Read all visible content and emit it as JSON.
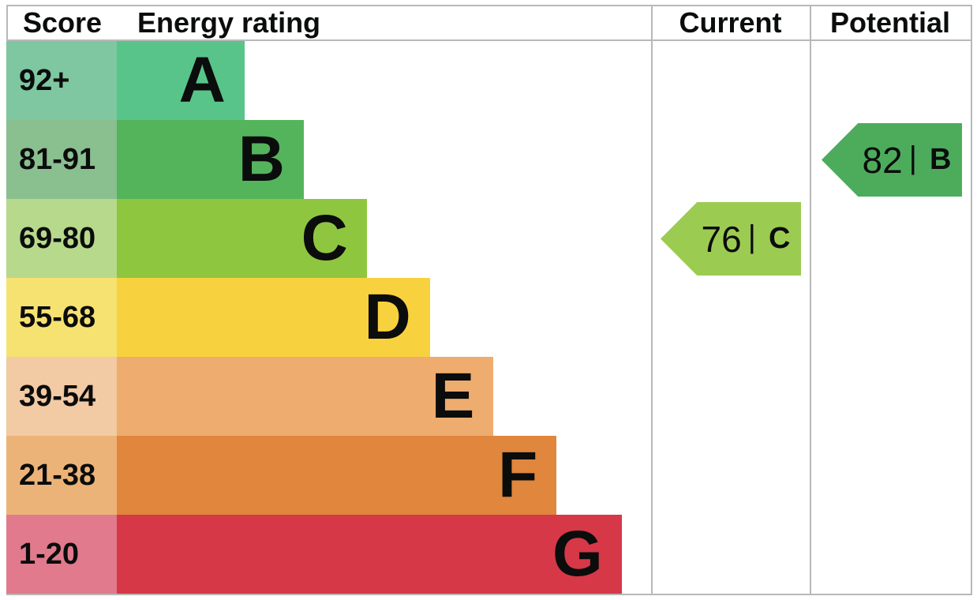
{
  "header": {
    "score": "Score",
    "energy_rating": "Energy rating",
    "current": "Current",
    "potential": "Potential"
  },
  "chart_data": {
    "type": "bar",
    "title": "EPC energy efficiency rating chart",
    "categories": [
      "A",
      "B",
      "C",
      "D",
      "E",
      "F",
      "G"
    ],
    "bands": [
      {
        "letter": "A",
        "score": "92+",
        "color": "#59c489",
        "score_bg": "#7ec7a1",
        "width_pct": 23.9
      },
      {
        "letter": "B",
        "score": "81-91",
        "color": "#54b45c",
        "score_bg": "#8abf90",
        "width_pct": 35.0
      },
      {
        "letter": "C",
        "score": "69-80",
        "color": "#8fc640",
        "score_bg": "#b7d98c",
        "width_pct": 46.8
      },
      {
        "letter": "D",
        "score": "55-68",
        "color": "#f8d23e",
        "score_bg": "#f6e271",
        "width_pct": 58.6
      },
      {
        "letter": "E",
        "score": "39-54",
        "color": "#eeac6f",
        "score_bg": "#f2caa3",
        "width_pct": 70.5
      },
      {
        "letter": "F",
        "score": "21-38",
        "color": "#e0863d",
        "score_bg": "#ecb378",
        "width_pct": 82.3
      },
      {
        "letter": "G",
        "score": "1-20",
        "color": "#d63848",
        "score_bg": "#e07a8c",
        "width_pct": 94.5
      }
    ],
    "current": {
      "label": "Current",
      "value": "76",
      "separator": "|",
      "letter": "C",
      "color": "#9ccb52"
    },
    "potential": {
      "label": "Potential",
      "value": "82",
      "separator": "|",
      "letter": "B",
      "color": "#4dac5c"
    },
    "layout": {
      "grid_line_color": "#b8b8b8",
      "text_color": "#0b0c0c",
      "background": "#ffffff"
    }
  }
}
